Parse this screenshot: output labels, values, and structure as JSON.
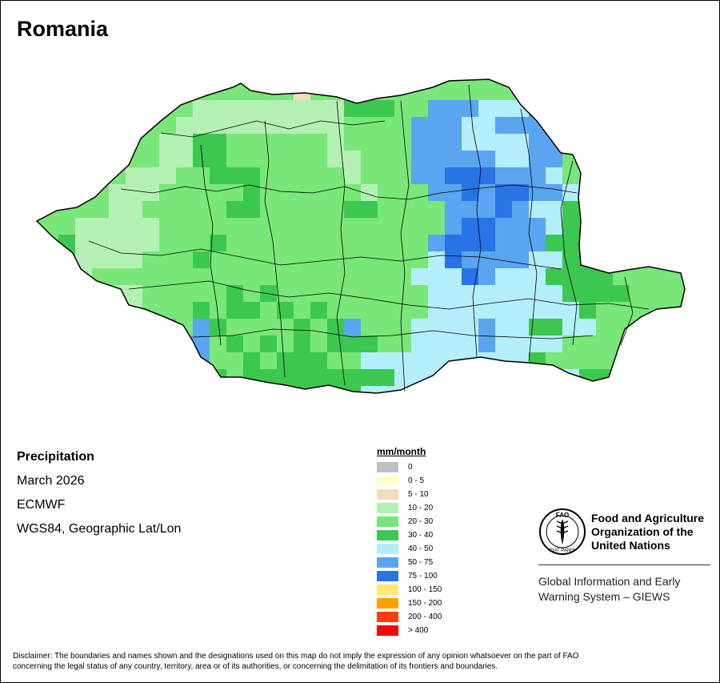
{
  "title": "Romania",
  "info": {
    "variable": "Precipitation",
    "date": "March 2026",
    "model": "ECMWF",
    "projection": "WGS84, Geographic Lat/Lon"
  },
  "legend": {
    "title": "mm/month",
    "classes": [
      {
        "label": "0",
        "color": "#c0c0c0"
      },
      {
        "label": "0 - 5",
        "color": "#ffffcc"
      },
      {
        "label": "5 - 10",
        "color": "#f0dcbe"
      },
      {
        "label": "10 - 20",
        "color": "#b4f0b4"
      },
      {
        "label": "20 - 30",
        "color": "#78e678"
      },
      {
        "label": "30 - 40",
        "color": "#3cc850"
      },
      {
        "label": "40 - 50",
        "color": "#b4eefa"
      },
      {
        "label": "50 - 75",
        "color": "#5aa5f0"
      },
      {
        "label": "75 - 100",
        "color": "#2873e6"
      },
      {
        "label": "100 - 150",
        "color": "#ffe678"
      },
      {
        "label": "150 - 200",
        "color": "#ffa000"
      },
      {
        "label": "200 - 400",
        "color": "#ff3c14"
      },
      {
        "label": "> 400",
        "color": "#ff0000"
      }
    ]
  },
  "org": {
    "name_line1": "Food and Agriculture",
    "name_line2": "Organization of the",
    "name_line3": "United Nations",
    "program_line1": "Global Information and Early",
    "program_line2": "Warning System – GIEWS",
    "logo_text": "FAO",
    "logo_ring_text": "FIAT PANIS"
  },
  "disclaimer_line1": "Disclaimer: The boundaries and names shown and the designations used on this map do not imply the expression of any opinion whatsoever on the part of FAO",
  "disclaimer_line2": "concerning the legal status of any country, territory, area or of its authorities, or concerning the delimitation of its frontiers and boundaries.",
  "map": {
    "country": "Romania",
    "grid_note_classes": "precipitation grid cells, each cell colored by legend class index",
    "grid_rows": [
      "...........................................",
      "................2..........................",
      "..........333333333555..7776667............",
      ".........3333333333444.77766777............",
      "........33554444443444.777666677...........",
      "........335544444433444777776677...........",
      "......33344555444443444778887776...........",
      ".....3334444454444443444778788776..........",
      ".....3344444554444455444477787665..........",
      "...3333344444444444444444788777655.........",
      "..53333344454444444444447888777555.........",
      "..53333444544444444444446877776655.........",
      "...34444444444444444444666876665555........",
      "...433344444545444444444666666665555.......",
      ".....33444545545454444446666666665.........",
      ".....344747544445457444666676655664444.....",
      "......4447745454545554466667666644444......",
      "......444474454555446666666666544444.......",
      ".......55555455555555566666666666555.......",
      "........55555555555566666666665555.........",
      ".........555555555555566666666665..........",
      "..........5555555555555556666665...........",
      "............5555555555555566..5............",
      "...........................................",
      "..........................................."
    ],
    "grid_palette": {
      "2": "#f0dcbe",
      "3": "#b4f0b4",
      "4": "#78e678",
      "5": "#3cc850",
      "6": "#b4eefa",
      "7": "#5aa5f0",
      "8": "#2873e6"
    }
  }
}
